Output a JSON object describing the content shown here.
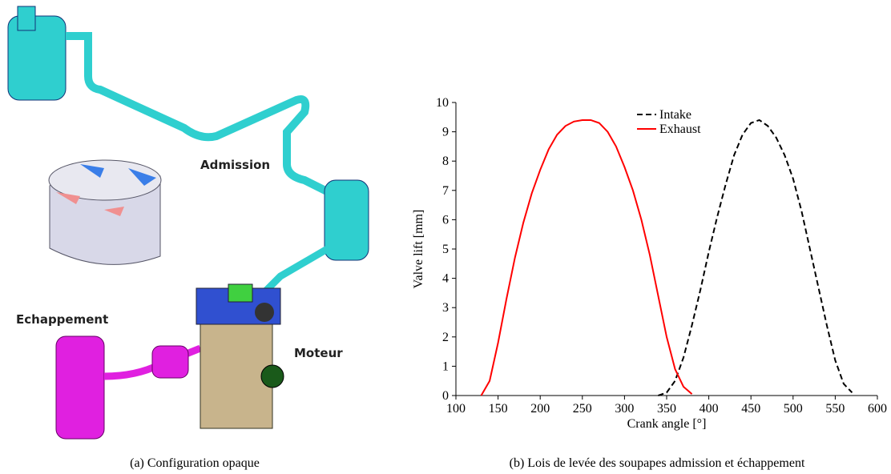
{
  "figure": {
    "illustration": {
      "labels": [
        "Admission",
        "Echappement",
        "Moteur"
      ],
      "caption": "(a) Configuration opaque"
    },
    "chart_caption": "(b) Lois de levée des soupapes admission et échappement"
  },
  "chart_data": {
    "type": "line",
    "xlabel": "Crank angle [°]",
    "ylabel": "Valve lift [mm]",
    "x": [
      130,
      140,
      150,
      160,
      170,
      180,
      190,
      200,
      210,
      220,
      230,
      240,
      250,
      260,
      270,
      280,
      290,
      300,
      310,
      320,
      330,
      340,
      350,
      360,
      370,
      380,
      390,
      400,
      410,
      420,
      430,
      440,
      450,
      460,
      470,
      480,
      490,
      500,
      510,
      520,
      530,
      540,
      550,
      560,
      570,
      580
    ],
    "series": [
      {
        "name": "Intake",
        "color": "#000000",
        "dash": true,
        "values": [
          null,
          null,
          null,
          null,
          null,
          null,
          null,
          null,
          null,
          null,
          null,
          null,
          null,
          null,
          null,
          null,
          null,
          null,
          null,
          null,
          null,
          0,
          0.1,
          0.5,
          1.3,
          2.4,
          3.6,
          4.9,
          6.1,
          7.2,
          8.2,
          8.9,
          9.3,
          9.4,
          9.2,
          8.8,
          8.2,
          7.4,
          6.3,
          5.0,
          3.7,
          2.4,
          1.2,
          0.4,
          0.1,
          null
        ]
      },
      {
        "name": "Exhaust",
        "color": "#ff0000",
        "dash": false,
        "values": [
          0,
          0.5,
          1.8,
          3.3,
          4.7,
          5.9,
          6.9,
          7.7,
          8.4,
          8.9,
          9.2,
          9.35,
          9.4,
          9.4,
          9.3,
          9.0,
          8.5,
          7.8,
          7.0,
          6.0,
          4.8,
          3.4,
          2.0,
          0.9,
          0.3,
          0.05,
          null,
          null,
          null,
          null,
          null,
          null,
          null,
          null,
          null,
          null,
          null,
          null,
          null,
          null,
          null,
          null,
          null,
          null,
          null,
          null
        ]
      }
    ],
    "xlim": [
      100,
      600
    ],
    "xticks": [
      100,
      150,
      200,
      250,
      300,
      350,
      400,
      450,
      500,
      550,
      600
    ],
    "ylim": [
      0,
      10
    ],
    "yticks": [
      0,
      1,
      2,
      3,
      4,
      5,
      6,
      7,
      8,
      9,
      10
    ],
    "legend": "top"
  }
}
